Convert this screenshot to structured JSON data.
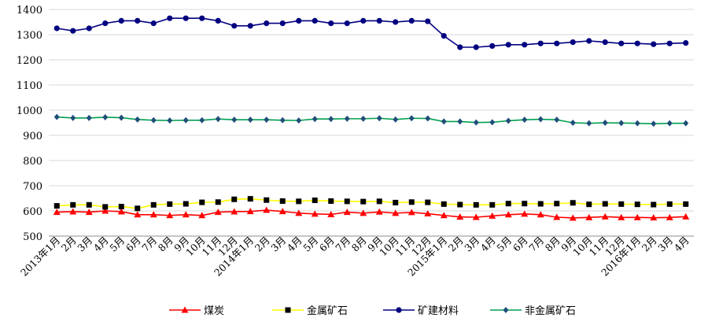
{
  "chart_data": {
    "type": "line",
    "title": "",
    "xlabel": "",
    "ylabel": "",
    "ylim": [
      500,
      1400
    ],
    "yticks": [
      500,
      600,
      700,
      800,
      900,
      1000,
      1100,
      1200,
      1300,
      1400
    ],
    "grid": true,
    "legend_position": "bottom",
    "x": [
      "2013年1月",
      "2月",
      "3月",
      "4月",
      "5月",
      "6月",
      "7月",
      "8月",
      "9月",
      "10月",
      "11月",
      "12月",
      "2014年1月",
      "2月",
      "3月",
      "4月",
      "5月",
      "6月",
      "7月",
      "8月",
      "9月",
      "10月",
      "11月",
      "12月",
      "2015年1月",
      "2月",
      "3月",
      "4月",
      "5月",
      "6月",
      "7月",
      "8月",
      "9月",
      "10月",
      "11月",
      "12月",
      "2016年1月",
      "2月",
      "3月",
      "4月"
    ],
    "series": [
      {
        "name": "煤炭",
        "color": "#ff0000",
        "marker": "triangle",
        "values": [
          595,
          597,
          595,
          600,
          597,
          585,
          585,
          582,
          585,
          582,
          595,
          597,
          598,
          603,
          598,
          591,
          588,
          586,
          595,
          591,
          596,
          591,
          594,
          589,
          582,
          576,
          575,
          580,
          585,
          588,
          585,
          575,
          572,
          574,
          577,
          574,
          574,
          573,
          574,
          577
        ]
      },
      {
        "name": "金属矿石",
        "color": "#ffff00",
        "marker": "square",
        "values": [
          620,
          624,
          624,
          616,
          617,
          610,
          624,
          627,
          628,
          634,
          635,
          646,
          648,
          643,
          639,
          638,
          642,
          639,
          638,
          637,
          638,
          633,
          635,
          634,
          627,
          625,
          624,
          624,
          629,
          629,
          628,
          629,
          632,
          626,
          628,
          627,
          626,
          625,
          627,
          627
        ]
      },
      {
        "name": "矿建材料",
        "color": "#000080",
        "marker": "circle",
        "values": [
          1325,
          1315,
          1325,
          1345,
          1355,
          1355,
          1345,
          1365,
          1365,
          1365,
          1355,
          1335,
          1335,
          1345,
          1345,
          1355,
          1355,
          1345,
          1345,
          1355,
          1355,
          1350,
          1355,
          1353,
          1295,
          1250,
          1250,
          1255,
          1260,
          1260,
          1265,
          1265,
          1270,
          1275,
          1270,
          1265,
          1265,
          1262,
          1265,
          1267
        ]
      },
      {
        "name": "非金属矿石",
        "color": "#00a050",
        "marker": "diamond",
        "values": [
          973,
          969,
          969,
          972,
          970,
          963,
          960,
          959,
          960,
          960,
          965,
          962,
          962,
          962,
          960,
          959,
          965,
          965,
          966,
          966,
          968,
          963,
          968,
          967,
          955,
          955,
          951,
          952,
          958,
          962,
          964,
          962,
          950,
          948,
          950,
          949,
          948,
          946,
          948,
          948
        ]
      }
    ]
  }
}
